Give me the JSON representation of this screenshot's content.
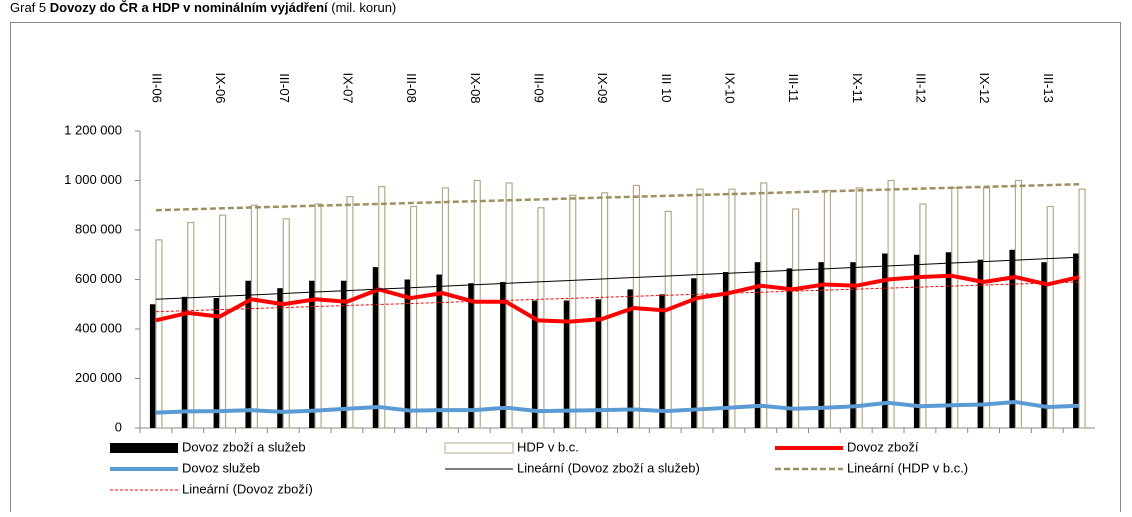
{
  "chart_data": {
    "type": "bar",
    "title_number": "Graf 5",
    "title": "Dovozy do ČR a HDP v nominálním vyjádření",
    "title_unit": "(mil. korun)",
    "categories": [
      "III-06",
      null,
      "IX-06",
      null,
      "III-07",
      null,
      "IX-07",
      null,
      "III-08",
      null,
      "IX-08",
      null,
      "III-09",
      null,
      "IX-09",
      null,
      "III 10",
      null,
      "IX-10",
      null,
      "III-11",
      null,
      "IX-11",
      null,
      "III-12",
      null,
      "IX-12",
      null,
      "III-13",
      null
    ],
    "ylim": [
      0,
      1200000
    ],
    "yticks": [
      0,
      {
        "value": 200000,
        "label": "200 000"
      },
      {
        "value": 400000,
        "label": "400 000"
      },
      {
        "value": 600000,
        "label": "600 000"
      },
      {
        "value": 800000,
        "label": "800 000"
      },
      {
        "value": 1000000,
        "label": "1 000 000"
      },
      {
        "value": 1200000,
        "label": "1 200 000"
      }
    ],
    "series": [
      {
        "name": "Dovoz zboží a služeb",
        "kind": "bar",
        "color": "#000000",
        "values": [
          500000,
          530000,
          525000,
          595000,
          565000,
          595000,
          595000,
          650000,
          600000,
          620000,
          585000,
          590000,
          515000,
          515000,
          520000,
          560000,
          540000,
          605000,
          630000,
          670000,
          645000,
          670000,
          670000,
          705000,
          700000,
          710000,
          680000,
          720000,
          670000,
          705000
        ]
      },
      {
        "name": "HDP v b.c.",
        "kind": "outline-bar",
        "color": "#b8a888",
        "values": [
          760000,
          830000,
          860000,
          900000,
          845000,
          905000,
          935000,
          975000,
          895000,
          970000,
          1000000,
          990000,
          890000,
          940000,
          950000,
          980000,
          875000,
          965000,
          965000,
          990000,
          885000,
          960000,
          970000,
          1000000,
          905000,
          970000,
          970000,
          1000000,
          895000,
          965000
        ]
      },
      {
        "name": "Dovoz zboží",
        "kind": "line",
        "color": "#ff0000",
        "width": 4,
        "values": [
          435000,
          465000,
          450000,
          520000,
          500000,
          520000,
          510000,
          560000,
          525000,
          545000,
          510000,
          510000,
          435000,
          430000,
          440000,
          485000,
          475000,
          525000,
          545000,
          575000,
          560000,
          580000,
          575000,
          600000,
          610000,
          615000,
          590000,
          610000,
          580000,
          610000
        ]
      },
      {
        "name": "Dovoz služeb",
        "kind": "line",
        "color": "#5b9bd5",
        "width": 4,
        "values": [
          62000,
          67000,
          68000,
          72000,
          65000,
          70000,
          78000,
          85000,
          70000,
          72000,
          72000,
          82000,
          68000,
          70000,
          72000,
          75000,
          68000,
          75000,
          82000,
          90000,
          78000,
          82000,
          88000,
          102000,
          88000,
          92000,
          95000,
          105000,
          85000,
          90000
        ]
      },
      {
        "name": "Lineární (Dovoz zboží a služeb)",
        "kind": "line",
        "color": "#000000",
        "width": 1,
        "values": [
          520000,
          525900,
          531700,
          537600,
          543400,
          549300,
          555200,
          561000,
          566900,
          572800,
          578600,
          584500,
          590300,
          596200,
          602100,
          607900,
          613800,
          619700,
          625500,
          631400,
          637200,
          643100,
          649000,
          654800,
          660700,
          666600,
          672400,
          678300,
          684100,
          690000
        ]
      },
      {
        "name": "Lineární (HDP v b.c.)",
        "kind": "line",
        "color": "#a09060",
        "width": 2.5,
        "dash": "6,3",
        "values": [
          880000,
          883600,
          887200,
          890900,
          894500,
          898100,
          901700,
          905300,
          909000,
          912600,
          916200,
          919800,
          923400,
          927100,
          930700,
          934300,
          937900,
          941600,
          945200,
          948800,
          952400,
          956000,
          959700,
          963300,
          966900,
          970500,
          974100,
          977800,
          981400,
          985000
        ]
      },
      {
        "name": "Lineární (Dovoz zboží)",
        "kind": "line",
        "color": "#ff0000",
        "width": 1,
        "dash": "3,2",
        "values": [
          470000,
          474100,
          478300,
          482400,
          486600,
          490700,
          494800,
          499000,
          503100,
          507200,
          511400,
          515500,
          519700,
          523800,
          527900,
          532100,
          536200,
          540300,
          544500,
          548600,
          552800,
          556900,
          561000,
          565200,
          569300,
          573400,
          577600,
          581700,
          585900,
          590000
        ]
      }
    ]
  }
}
